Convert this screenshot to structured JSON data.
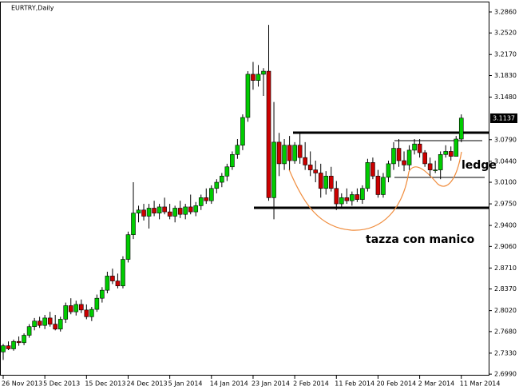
{
  "chart_data": {
    "type": "candlestick",
    "title": "EURTRY,Daily",
    "categories": [
      "26 Nov 2013",
      null,
      null,
      null,
      null,
      null,
      null,
      null,
      "5 Dec 2013",
      null,
      null,
      null,
      null,
      null,
      null,
      null,
      "15 Dec 2013",
      null,
      null,
      null,
      null,
      null,
      null,
      null,
      "24 Dec 2013",
      null,
      null,
      null,
      null,
      null,
      null,
      null,
      "5 Jan 2014",
      null,
      null,
      null,
      null,
      null,
      null,
      null,
      "14 Jan 2014",
      null,
      null,
      null,
      null,
      null,
      null,
      null,
      "23 Jan 2014",
      null,
      null,
      null,
      null,
      null,
      null,
      null,
      "2 Feb 2014",
      null,
      null,
      null,
      null,
      null,
      null,
      null,
      "11 Feb 2014",
      null,
      null,
      null,
      null,
      null,
      null,
      null,
      "20 Feb 2014",
      null,
      null,
      null,
      null,
      null,
      null,
      null,
      "2 Mar 2014",
      null,
      null,
      null,
      null,
      null,
      null,
      null,
      "11 Mar 2014"
    ],
    "open": [
      2.735,
      2.745,
      2.74,
      2.752,
      2.75,
      2.762,
      2.776,
      2.785,
      2.778,
      2.79,
      2.78,
      2.772,
      2.788,
      2.81,
      2.8,
      2.812,
      2.803,
      2.792,
      2.804,
      2.822,
      2.835,
      2.858,
      2.85,
      2.842,
      2.885,
      2.925,
      2.96,
      2.965,
      2.955,
      2.968,
      2.96,
      2.97,
      2.962,
      2.955,
      2.968,
      2.958,
      2.97,
      2.962,
      2.972,
      2.985,
      2.98,
      3.0,
      3.01,
      3.02,
      3.035,
      3.055,
      3.07,
      3.115,
      3.185,
      3.175,
      3.185,
      3.19,
      2.985,
      3.075,
      3.04,
      3.07,
      3.045,
      3.07,
      3.05,
      3.038,
      3.03,
      3.025,
      3.0,
      3.02,
      3.0,
      2.975,
      2.985,
      2.98,
      2.99,
      2.982,
      3.0,
      3.042,
      3.02,
      2.99,
      3.018,
      3.04,
      3.065,
      3.045,
      3.038,
      3.062,
      3.072,
      3.058,
      3.04,
      3.03,
      3.03,
      3.055,
      3.06,
      3.052,
      3.08
    ],
    "high": [
      2.748,
      2.752,
      2.755,
      2.76,
      2.765,
      2.78,
      2.79,
      2.792,
      2.795,
      2.8,
      2.795,
      2.792,
      2.815,
      2.822,
      2.818,
      2.82,
      2.812,
      2.808,
      2.828,
      2.84,
      2.865,
      2.87,
      2.862,
      2.89,
      2.93,
      3.01,
      2.972,
      2.975,
      2.975,
      2.98,
      2.975,
      2.985,
      2.975,
      2.972,
      2.98,
      2.975,
      2.99,
      2.978,
      2.99,
      3.0,
      3.005,
      3.015,
      3.025,
      3.04,
      3.06,
      3.08,
      3.12,
      3.19,
      3.205,
      3.2,
      3.195,
      3.265,
      3.14,
      3.09,
      3.08,
      3.085,
      3.075,
      3.09,
      3.075,
      3.06,
      3.045,
      3.04,
      3.028,
      3.035,
      3.012,
      2.992,
      3.0,
      2.995,
      3.0,
      3.005,
      3.048,
      3.05,
      3.03,
      3.025,
      3.045,
      3.075,
      3.08,
      3.06,
      3.07,
      3.08,
      3.08,
      3.062,
      3.05,
      3.045,
      3.06,
      3.07,
      3.068,
      3.085,
      3.12
    ],
    "low": [
      2.722,
      2.738,
      2.737,
      2.745,
      2.746,
      2.758,
      2.77,
      2.774,
      2.772,
      2.776,
      2.77,
      2.768,
      2.782,
      2.796,
      2.794,
      2.798,
      2.788,
      2.785,
      2.8,
      2.815,
      2.83,
      2.845,
      2.838,
      2.838,
      2.88,
      2.918,
      2.945,
      2.948,
      2.935,
      2.955,
      2.95,
      2.958,
      2.95,
      2.945,
      2.952,
      2.95,
      2.958,
      2.955,
      2.965,
      2.975,
      2.975,
      2.992,
      3.002,
      3.012,
      3.03,
      3.048,
      3.062,
      3.108,
      3.16,
      3.165,
      3.15,
      2.98,
      2.95,
      3.02,
      3.03,
      3.03,
      3.04,
      3.04,
      3.03,
      3.02,
      3.01,
      2.985,
      2.99,
      2.995,
      2.965,
      2.97,
      2.975,
      2.972,
      2.978,
      2.975,
      2.995,
      3.015,
      2.985,
      2.985,
      3.01,
      3.03,
      3.035,
      3.028,
      3.03,
      3.055,
      3.05,
      3.035,
      3.02,
      3.025,
      3.015,
      3.05,
      3.045,
      3.055,
      3.075
    ],
    "close": [
      2.745,
      2.74,
      2.752,
      2.75,
      2.762,
      2.776,
      2.785,
      2.778,
      2.79,
      2.78,
      2.772,
      2.788,
      2.81,
      2.8,
      2.812,
      2.803,
      2.792,
      2.804,
      2.822,
      2.835,
      2.858,
      2.85,
      2.842,
      2.885,
      2.925,
      2.96,
      2.965,
      2.955,
      2.968,
      2.96,
      2.97,
      2.962,
      2.955,
      2.968,
      2.958,
      2.97,
      2.962,
      2.972,
      2.985,
      2.98,
      3.0,
      3.01,
      3.02,
      3.035,
      3.055,
      3.07,
      3.115,
      3.185,
      3.175,
      3.185,
      3.19,
      2.985,
      3.075,
      3.04,
      3.07,
      3.045,
      3.07,
      3.05,
      3.038,
      3.03,
      3.025,
      3.0,
      3.02,
      3.0,
      2.975,
      2.985,
      2.98,
      2.99,
      2.982,
      3.0,
      3.042,
      3.02,
      2.99,
      3.018,
      3.04,
      3.065,
      3.045,
      3.038,
      3.062,
      3.072,
      3.058,
      3.04,
      3.03,
      3.03,
      3.055,
      3.06,
      3.052,
      3.08,
      3.114
    ],
    "up_color": "#00cc00",
    "down_color": "#cc0000",
    "ylim": [
      2.6966,
      3.3028
    ],
    "yticks": [
      {
        "value": 3.286,
        "label": "3.2860"
      },
      {
        "value": 3.252,
        "label": "3.2520"
      },
      {
        "value": 3.217,
        "label": "3.2170"
      },
      {
        "value": 3.183,
        "label": "3.1830"
      },
      {
        "value": 3.148,
        "label": "3.1480"
      },
      {
        "value": 3.079,
        "label": "3.0790"
      },
      {
        "value": 3.044,
        "label": "3.0440"
      },
      {
        "value": 3.01,
        "label": "3.0100"
      },
      {
        "value": 2.975,
        "label": "2.9750"
      },
      {
        "value": 2.94,
        "label": "2.9400"
      },
      {
        "value": 2.906,
        "label": "2.9060"
      },
      {
        "value": 2.871,
        "label": "2.8710"
      },
      {
        "value": 2.837,
        "label": "2.8370"
      },
      {
        "value": 2.802,
        "label": "2.8020"
      },
      {
        "value": 2.768,
        "label": "2.7680"
      },
      {
        "value": 2.733,
        "label": "2.7330"
      },
      {
        "value": 2.699,
        "label": "2.6990"
      }
    ],
    "last_price": {
      "value": 3.1137,
      "label": "3.1137"
    },
    "annotations": [
      "ledge",
      "tazza con manico"
    ]
  }
}
